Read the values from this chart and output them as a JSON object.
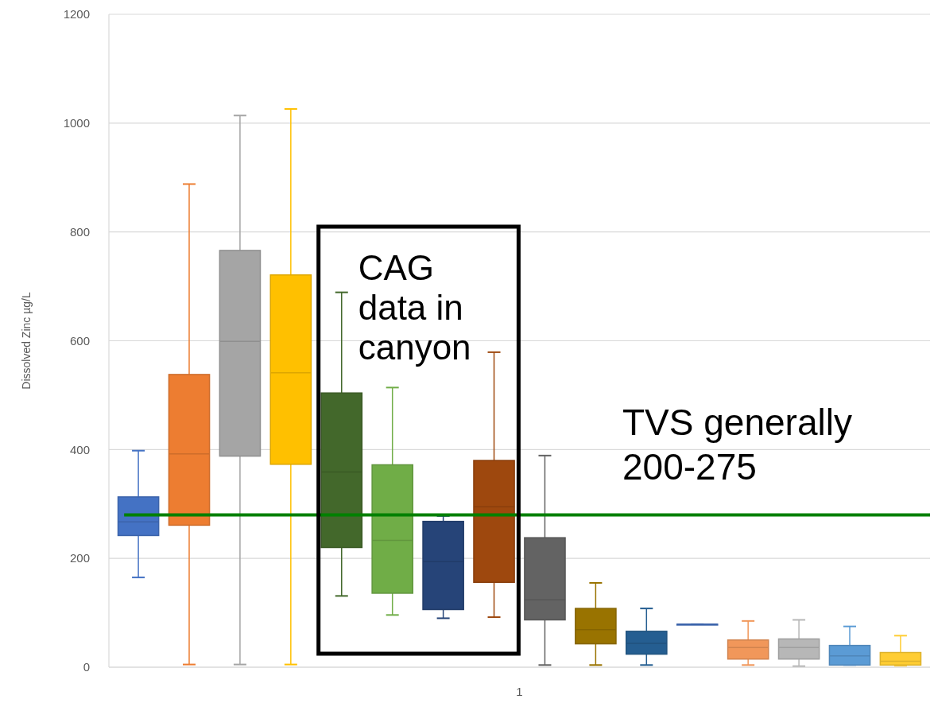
{
  "chart_data": {
    "type": "box",
    "ylabel": "Dissolved Zinc µg/L",
    "categories": [
      "1"
    ],
    "ylim": [
      0,
      1200
    ],
    "yticks": [
      0,
      200,
      400,
      600,
      800,
      1000,
      1200
    ],
    "grid": "y",
    "series": [
      {
        "color": "#4472c4",
        "boxes": [
          {
            "low": 165,
            "q1": 242,
            "median": 267,
            "q3": 313,
            "high": 398
          }
        ]
      },
      {
        "color": "#ed7d31",
        "boxes": [
          {
            "low": 5,
            "q1": 261,
            "median": 392,
            "q3": 538,
            "high": 888
          }
        ]
      },
      {
        "color": "#a5a5a5",
        "boxes": [
          {
            "low": 5,
            "q1": 388,
            "median": 599,
            "q3": 766,
            "high": 1014
          }
        ]
      },
      {
        "color": "#ffc000",
        "boxes": [
          {
            "low": 5,
            "q1": 373,
            "median": 541,
            "q3": 721,
            "high": 1026
          }
        ]
      },
      {
        "color": "#43682b",
        "boxes": [
          {
            "low": 131,
            "q1": 220,
            "median": 359,
            "q3": 504,
            "high": 689
          }
        ]
      },
      {
        "color": "#70ad47",
        "boxes": [
          {
            "low": 96,
            "q1": 136,
            "median": 233,
            "q3": 372,
            "high": 514
          }
        ]
      },
      {
        "color": "#264478",
        "boxes": [
          {
            "low": 90,
            "q1": 106,
            "median": 194,
            "q3": 268,
            "high": 278
          }
        ]
      },
      {
        "color": "#9e480e",
        "boxes": [
          {
            "low": 92,
            "q1": 156,
            "median": 295,
            "q3": 380,
            "high": 579
          }
        ]
      },
      {
        "color": "#636363",
        "boxes": [
          {
            "low": 4,
            "q1": 87,
            "median": 124,
            "q3": 238,
            "high": 389
          }
        ]
      },
      {
        "color": "#997300",
        "boxes": [
          {
            "low": 4,
            "q1": 43,
            "median": 69,
            "q3": 108,
            "high": 155
          }
        ]
      },
      {
        "color": "#255e91",
        "boxes": [
          {
            "low": 4,
            "q1": 24,
            "median": 44,
            "q3": 66,
            "high": 108
          }
        ]
      },
      {
        "color": "#4472c4",
        "boxes": [
          {
            "low": 79,
            "q1": 79,
            "median": 79,
            "q3": 79,
            "high": 79
          }
        ]
      },
      {
        "color": "#f1975a",
        "boxes": [
          {
            "low": 4,
            "q1": 15,
            "median": 36,
            "q3": 50,
            "high": 85
          }
        ]
      },
      {
        "color": "#b7b7b7",
        "boxes": [
          {
            "low": 2,
            "q1": 15,
            "median": 36,
            "q3": 52,
            "high": 87
          }
        ]
      },
      {
        "color": "#5b9bd5",
        "boxes": [
          {
            "low": 4,
            "q1": 4,
            "median": 21,
            "q3": 40,
            "high": 75
          }
        ]
      },
      {
        "color": "#ffcd33",
        "boxes": [
          {
            "low": 3,
            "q1": 4,
            "median": 11,
            "q3": 27,
            "high": 58
          }
        ]
      }
    ],
    "ref_lines": [
      {
        "axis": "y",
        "value": 280,
        "label": "TVS generally 200-275",
        "color": "#008000"
      }
    ],
    "annotations": [
      "CAG data in canyon"
    ]
  }
}
